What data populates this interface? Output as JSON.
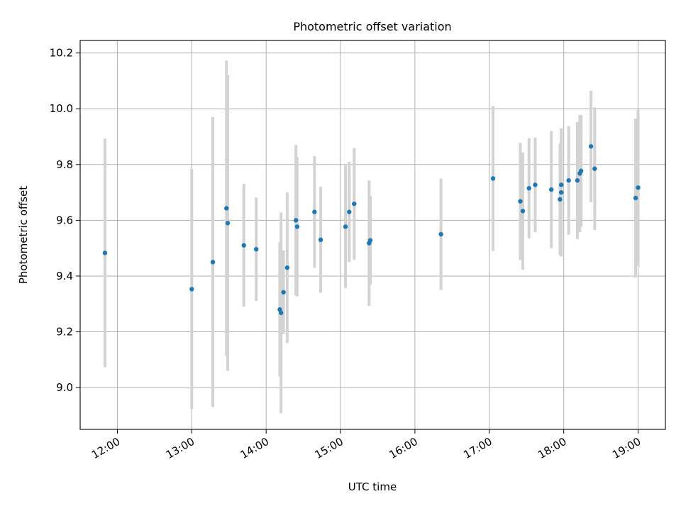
{
  "chart_data": {
    "type": "scatter",
    "title": "Photometric offset variation",
    "xlabel": "UTC time",
    "ylabel": "Photometric offset",
    "xlim": [
      "11:30",
      "19:22"
    ],
    "ylim": [
      8.85,
      10.245
    ],
    "xticks": [
      "12:00",
      "13:00",
      "14:00",
      "15:00",
      "16:00",
      "17:00",
      "18:00",
      "19:00"
    ],
    "yticks": [
      "9.0",
      "9.2",
      "9.4",
      "9.6",
      "9.8",
      "10.0",
      "10.2"
    ],
    "grid": true,
    "point_color": "#1f77b4",
    "errorbar_color": "#d3d3d3",
    "points": [
      {
        "x": "11:50",
        "y": 9.483,
        "err": 0.41
      },
      {
        "x": "13:00",
        "y": 9.353,
        "err": 0.43
      },
      {
        "x": "13:17",
        "y": 9.45,
        "err": 0.52
      },
      {
        "x": "13:28",
        "y": 9.643,
        "err": 0.53
      },
      {
        "x": "13:29",
        "y": 9.59,
        "err": 0.53
      },
      {
        "x": "13:42",
        "y": 9.51,
        "err": 0.22
      },
      {
        "x": "13:52",
        "y": 9.496,
        "err": 0.185
      },
      {
        "x": "14:11",
        "y": 9.28,
        "err": 0.24
      },
      {
        "x": "14:12",
        "y": 9.268,
        "err": 0.36
      },
      {
        "x": "14:14",
        "y": 9.342,
        "err": 0.15
      },
      {
        "x": "14:17",
        "y": 9.43,
        "err": 0.27
      },
      {
        "x": "14:24",
        "y": 9.6,
        "err": 0.27
      },
      {
        "x": "14:25",
        "y": 9.577,
        "err": 0.25
      },
      {
        "x": "14:39",
        "y": 9.63,
        "err": 0.2
      },
      {
        "x": "14:44",
        "y": 9.53,
        "err": 0.19
      },
      {
        "x": "15:04",
        "y": 9.577,
        "err": 0.22
      },
      {
        "x": "15:07",
        "y": 9.63,
        "err": 0.18
      },
      {
        "x": "15:11",
        "y": 9.659,
        "err": 0.2
      },
      {
        "x": "15:23",
        "y": 9.518,
        "err": 0.225
      },
      {
        "x": "15:24",
        "y": 9.528,
        "err": 0.16
      },
      {
        "x": "16:21",
        "y": 9.55,
        "err": 0.2
      },
      {
        "x": "17:03",
        "y": 9.75,
        "err": 0.26
      },
      {
        "x": "17:25",
        "y": 9.668,
        "err": 0.21
      },
      {
        "x": "17:27",
        "y": 9.633,
        "err": 0.21
      },
      {
        "x": "17:32",
        "y": 9.715,
        "err": 0.18
      },
      {
        "x": "17:37",
        "y": 9.727,
        "err": 0.17
      },
      {
        "x": "17:50",
        "y": 9.71,
        "err": 0.21
      },
      {
        "x": "17:57",
        "y": 9.675,
        "err": 0.2
      },
      {
        "x": "17:58",
        "y": 9.7,
        "err": 0.23
      },
      {
        "x": "17:58",
        "y": 9.727,
        "err": 0.2
      },
      {
        "x": "18:04",
        "y": 9.743,
        "err": 0.195
      },
      {
        "x": "18:11",
        "y": 9.743,
        "err": 0.21
      },
      {
        "x": "18:13",
        "y": 9.768,
        "err": 0.21
      },
      {
        "x": "18:14",
        "y": 9.777,
        "err": 0.2
      },
      {
        "x": "18:22",
        "y": 9.865,
        "err": 0.2
      },
      {
        "x": "18:25",
        "y": 9.785,
        "err": 0.22
      },
      {
        "x": "18:58",
        "y": 9.68,
        "err": 0.285
      },
      {
        "x": "19:00",
        "y": 9.717,
        "err": 0.28
      }
    ]
  }
}
